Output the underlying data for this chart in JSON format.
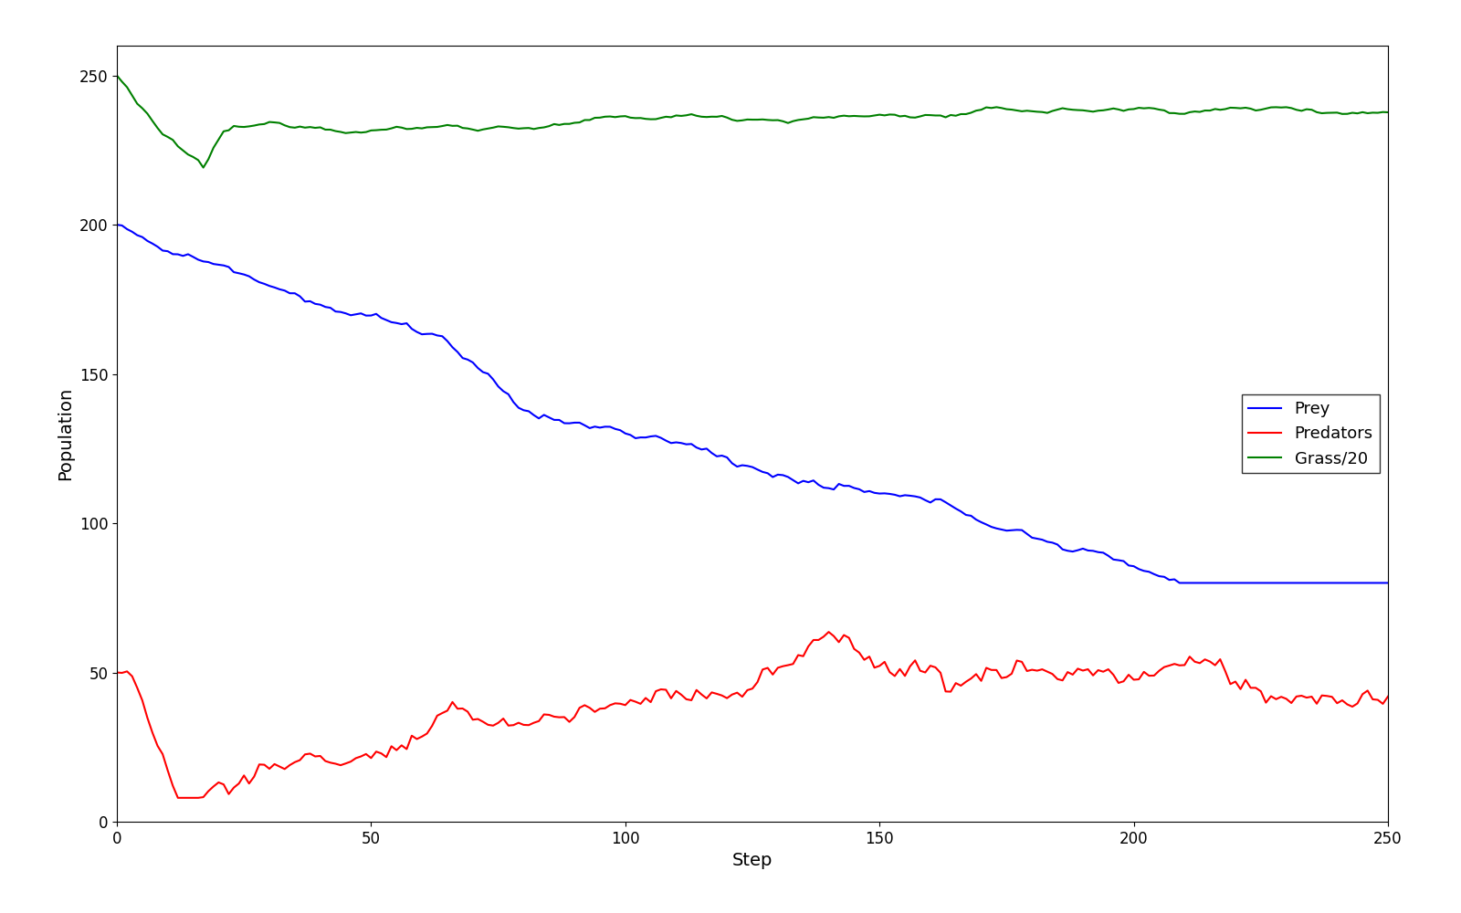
{
  "title": "",
  "xlabel": "Step",
  "ylabel": "Population",
  "steps": 251,
  "prey_color": "#0000ff",
  "predator_color": "#ff0000",
  "grass_color": "#008000",
  "legend_labels": [
    "Prey",
    "Predators",
    "Grass/20"
  ],
  "legend_loc": "center right",
  "figsize": [
    16.0,
    10.0
  ],
  "dpi": 100,
  "ylim": [
    0,
    260
  ],
  "xlim": [
    0,
    250
  ],
  "seed": 12345
}
